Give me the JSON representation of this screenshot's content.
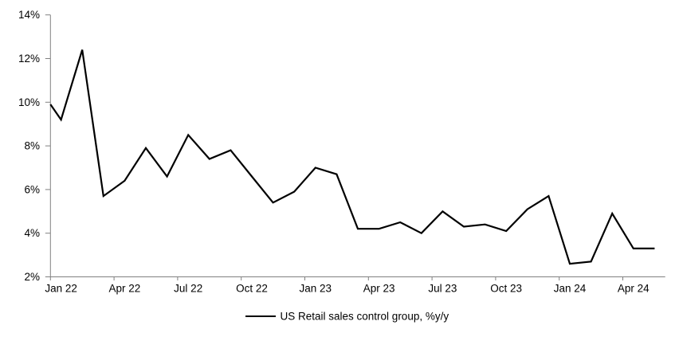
{
  "chart_data": {
    "type": "line",
    "title": "",
    "legend": "US Retail sales control group, %y/y",
    "legend_position": "bottom-center",
    "grid": false,
    "series_color": "#000000",
    "axis_color": "#808080",
    "background_color": "#ffffff",
    "ylim": [
      2,
      14
    ],
    "y_ticks": [
      2,
      4,
      6,
      8,
      10,
      12,
      14
    ],
    "y_tick_labels": [
      "2%",
      "4%",
      "6%",
      "8%",
      "10%",
      "12%",
      "14%"
    ],
    "x": [
      "Jan 22",
      "Feb 22",
      "Mar 22",
      "Apr 22",
      "May 22",
      "Jun 22",
      "Jul 22",
      "Aug 22",
      "Sep 22",
      "Oct 22",
      "Nov 22",
      "Dec 22",
      "Jan 23",
      "Feb 23",
      "Mar 23",
      "Apr 23",
      "May 23",
      "Jun 23",
      "Jul 23",
      "Aug 23",
      "Sep 23",
      "Oct 23",
      "Nov 23",
      "Dec 23",
      "Jan 24",
      "Feb 24",
      "Mar 24",
      "Apr 24",
      "May 24"
    ],
    "values": [
      9.2,
      12.4,
      5.7,
      6.4,
      7.9,
      6.6,
      8.5,
      7.4,
      7.8,
      6.6,
      5.4,
      5.9,
      7.0,
      6.7,
      4.2,
      4.2,
      4.5,
      4.0,
      5.0,
      4.3,
      4.4,
      4.1,
      5.1,
      5.7,
      2.6,
      2.7,
      4.9,
      3.3,
      3.3
    ],
    "lead_in_value_at_axis": 9.9,
    "x_tick_labels": [
      "Jan 22",
      "Apr 22",
      "Jul 22",
      "Oct 22",
      "Jan 23",
      "Apr 23",
      "Jul 23",
      "Oct 23",
      "Jan 24",
      "Apr 24"
    ]
  }
}
